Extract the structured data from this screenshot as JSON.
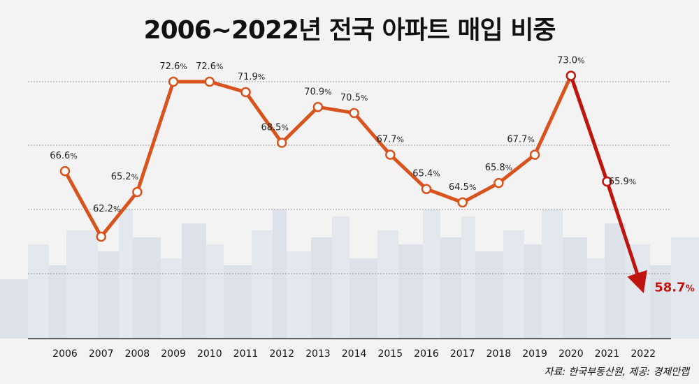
{
  "title": "2006~2022년 전국 아파트 매입 비중",
  "source": "자료: 한국부동산원, 제공: 경제만랩",
  "colors": {
    "line_main": "#d9531e",
    "line_end": "#c0140f",
    "highlight_label": "#c0140f",
    "grid": "#9a9a9a",
    "skyline": "#dfe3ea"
  },
  "chart_data": {
    "type": "line",
    "title": "2006~2022년 전국 아파트 매입 비중",
    "xlabel": "",
    "ylabel": "",
    "unit": "%",
    "grid": true,
    "legend": "none",
    "ylim": [
      56,
      78
    ],
    "categories": [
      "2006",
      "2007",
      "2008",
      "2009",
      "2010",
      "2011",
      "2012",
      "2013",
      "2014",
      "2015",
      "2016",
      "2017",
      "2018",
      "2019",
      "2020",
      "2021",
      "2022"
    ],
    "series": [
      {
        "values": [
          66.6,
          62.2,
          65.2,
          72.6,
          72.6,
          71.9,
          68.5,
          70.9,
          70.5,
          67.7,
          65.4,
          64.5,
          65.8,
          67.7,
          73.0,
          65.9,
          58.7
        ]
      }
    ],
    "labels": [
      "66.6",
      "62.2",
      "65.2",
      "72.6",
      "72.6",
      "71.9",
      "68.5",
      "70.9",
      "70.5",
      "67.7",
      "65.4",
      "64.5",
      "65.8",
      "67.7",
      "73.0",
      "65.9",
      "58.7"
    ]
  }
}
